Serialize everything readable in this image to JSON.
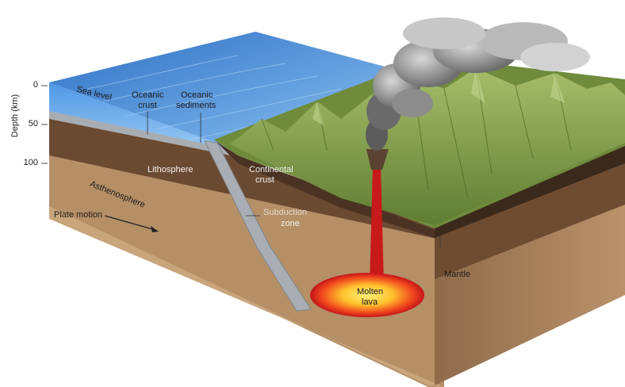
{
  "axis": {
    "label": "Depth (km)",
    "ticks": [
      "0",
      "50",
      "100"
    ]
  },
  "labels": {
    "sea_level": "Sea level",
    "oceanic_crust_1": "Oceanic",
    "oceanic_crust_2": "crust",
    "oceanic_sediments_1": "Oceanic",
    "oceanic_sediments_2": "sediments",
    "lithosphere": "Lithosphere",
    "asthenosphere": "Asthenosphere",
    "plate_motion": "Plate motion",
    "continental_crust_1": "Continental",
    "continental_crust_2": "crust",
    "subduction_zone_1": "Subduction",
    "subduction_zone_2": "zone",
    "mantle": "Mantle",
    "molten_lava_1": "Molten",
    "molten_lava_2": "lava"
  },
  "colors": {
    "ocean_top": "#3f86d6",
    "ocean_front": "#5aa0e8",
    "oceanic_crust": "#a9aeb4",
    "lithosphere": "#6b4a33",
    "asthenosphere": "#b8946c",
    "mantle_front": "#c7a57e",
    "continent_top": "#7f9a48",
    "continent_dark": "#4e6a2a",
    "smoke": "#8a8a8a",
    "lava": "#e0241b",
    "lava_core": "#ffd23a"
  }
}
